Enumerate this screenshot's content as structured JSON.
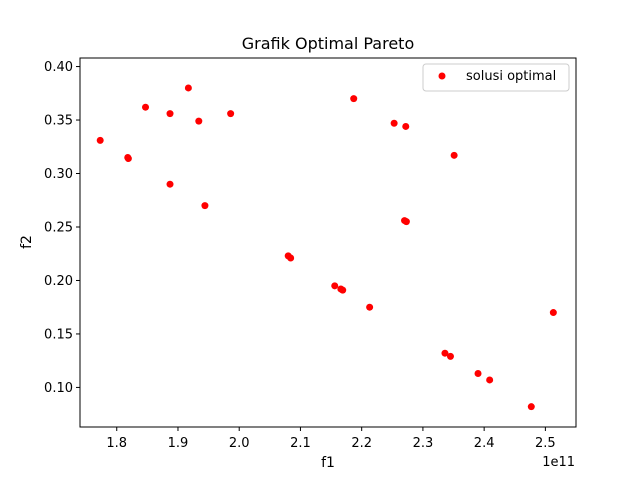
{
  "chart_data": {
    "type": "scatter",
    "title": "Grafik Optimal Pareto",
    "xlabel": "f1",
    "ylabel": "f2",
    "x_offset_text": "1e11",
    "x_unit_multiplier": 100000000000.0,
    "xlim": [
      1.74,
      2.55
    ],
    "ylim": [
      0.063,
      0.408
    ],
    "xticks": [
      1.8,
      1.9,
      2.0,
      2.1,
      2.2,
      2.3,
      2.4,
      2.5
    ],
    "xtick_labels": [
      "1.8",
      "1.9",
      "2.0",
      "2.1",
      "2.2",
      "2.3",
      "2.4",
      "2.5"
    ],
    "yticks": [
      0.1,
      0.15,
      0.2,
      0.25,
      0.3,
      0.35,
      0.4
    ],
    "ytick_labels": [
      "0.10",
      "0.15",
      "0.20",
      "0.25",
      "0.30",
      "0.35",
      "0.40"
    ],
    "grid": false,
    "legend_position": "top-right",
    "series": [
      {
        "name": "solusi optimal",
        "color": "#ff0000",
        "points": [
          {
            "x": 1.773,
            "y": 0.331
          },
          {
            "x": 1.818,
            "y": 0.315
          },
          {
            "x": 1.819,
            "y": 0.314
          },
          {
            "x": 1.847,
            "y": 0.362
          },
          {
            "x": 1.887,
            "y": 0.356
          },
          {
            "x": 1.887,
            "y": 0.29
          },
          {
            "x": 1.917,
            "y": 0.38
          },
          {
            "x": 1.934,
            "y": 0.349
          },
          {
            "x": 1.944,
            "y": 0.27
          },
          {
            "x": 1.986,
            "y": 0.356
          },
          {
            "x": 2.08,
            "y": 0.223
          },
          {
            "x": 2.084,
            "y": 0.221
          },
          {
            "x": 2.156,
            "y": 0.195
          },
          {
            "x": 2.166,
            "y": 0.192
          },
          {
            "x": 2.169,
            "y": 0.191
          },
          {
            "x": 2.187,
            "y": 0.37
          },
          {
            "x": 2.213,
            "y": 0.175
          },
          {
            "x": 2.253,
            "y": 0.347
          },
          {
            "x": 2.27,
            "y": 0.256
          },
          {
            "x": 2.273,
            "y": 0.255
          },
          {
            "x": 2.272,
            "y": 0.344
          },
          {
            "x": 2.336,
            "y": 0.132
          },
          {
            "x": 2.345,
            "y": 0.129
          },
          {
            "x": 2.351,
            "y": 0.317
          },
          {
            "x": 2.39,
            "y": 0.113
          },
          {
            "x": 2.409,
            "y": 0.107
          },
          {
            "x": 2.477,
            "y": 0.082
          },
          {
            "x": 2.513,
            "y": 0.17
          }
        ]
      }
    ]
  }
}
